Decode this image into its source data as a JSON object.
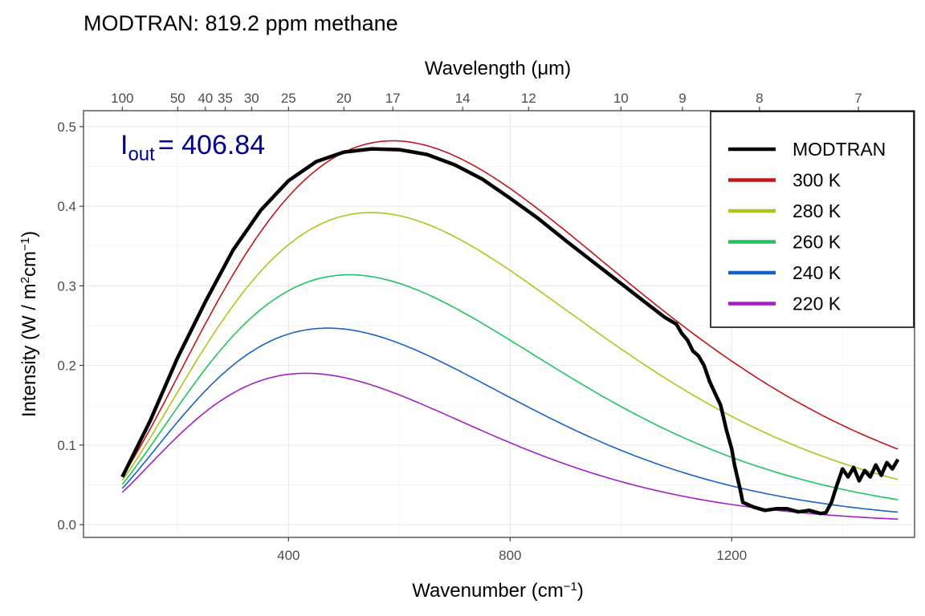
{
  "chart_data": {
    "type": "line",
    "title": "MODTRAN: 819.2 ppm methane",
    "xlabel": "Wavenumber",
    "xlabel_unit": "cm",
    "xlabel_unit_exp": "−1",
    "ylabel": "Intensity",
    "ylabel_unit": "W / m",
    "ylabel_sup1": "2",
    "ylabel_cm": "cm",
    "ylabel_sup2": "−1",
    "top_axis_label": "Wavelength (μm)",
    "xlim": [
      30,
      1530
    ],
    "ylim": [
      -0.016,
      0.52
    ],
    "x_ticks": [
      400,
      800,
      1200
    ],
    "y_ticks": [
      0.0,
      0.1,
      0.2,
      0.3,
      0.4,
      0.5
    ],
    "top_ticks": [
      100,
      50,
      40,
      35,
      30,
      25,
      20,
      17,
      14,
      12,
      10,
      9,
      8,
      7
    ],
    "top_tick_labels": [
      "100",
      "50",
      "40",
      "35",
      "30",
      "25",
      "20",
      "17",
      "14",
      "12",
      "10",
      "9",
      "8",
      "7"
    ],
    "x_tick_labels": [
      "400",
      "800",
      "1200"
    ],
    "y_tick_labels": [
      "0.0",
      "0.1",
      "0.2",
      "0.3",
      "0.4",
      "0.5"
    ],
    "grid": true,
    "legend_position": "top-right",
    "annotation": {
      "symbol": "I",
      "subscript": "out",
      "value": "= 406.84",
      "color": "#00008B"
    },
    "series": [
      {
        "name": "MODTRAN",
        "color": "#000000",
        "x": [
          100,
          150,
          200,
          250,
          300,
          350,
          400,
          450,
          500,
          550,
          600,
          650,
          700,
          750,
          800,
          850,
          900,
          950,
          1000,
          1050,
          1080,
          1100,
          1110,
          1120,
          1130,
          1140,
          1150,
          1160,
          1170,
          1180,
          1190,
          1200,
          1205,
          1210,
          1215,
          1220,
          1240,
          1260,
          1280,
          1300,
          1320,
          1340,
          1360,
          1370,
          1380,
          1390,
          1400,
          1410,
          1420,
          1430,
          1440,
          1450,
          1460,
          1470,
          1480,
          1490,
          1500
        ],
        "y": [
          0.06,
          0.13,
          0.21,
          0.28,
          0.345,
          0.395,
          0.432,
          0.456,
          0.468,
          0.472,
          0.471,
          0.465,
          0.452,
          0.434,
          0.41,
          0.385,
          0.357,
          0.33,
          0.303,
          0.276,
          0.26,
          0.252,
          0.24,
          0.232,
          0.218,
          0.212,
          0.2,
          0.18,
          0.165,
          0.15,
          0.12,
          0.095,
          0.075,
          0.06,
          0.045,
          0.028,
          0.022,
          0.018,
          0.02,
          0.02,
          0.016,
          0.018,
          0.014,
          0.015,
          0.028,
          0.05,
          0.07,
          0.06,
          0.072,
          0.055,
          0.068,
          0.06,
          0.075,
          0.062,
          0.078,
          0.07,
          0.082
        ]
      },
      {
        "name": "300 K",
        "color": "#C0161B",
        "temperature": 300
      },
      {
        "name": "280 K",
        "color": "#B3C21D",
        "temperature": 280
      },
      {
        "name": "260 K",
        "color": "#1FC45E",
        "temperature": 260
      },
      {
        "name": "240 K",
        "color": "#1863C6",
        "temperature": 240
      },
      {
        "name": "220 K",
        "color": "#A120C4",
        "temperature": 220
      }
    ]
  }
}
